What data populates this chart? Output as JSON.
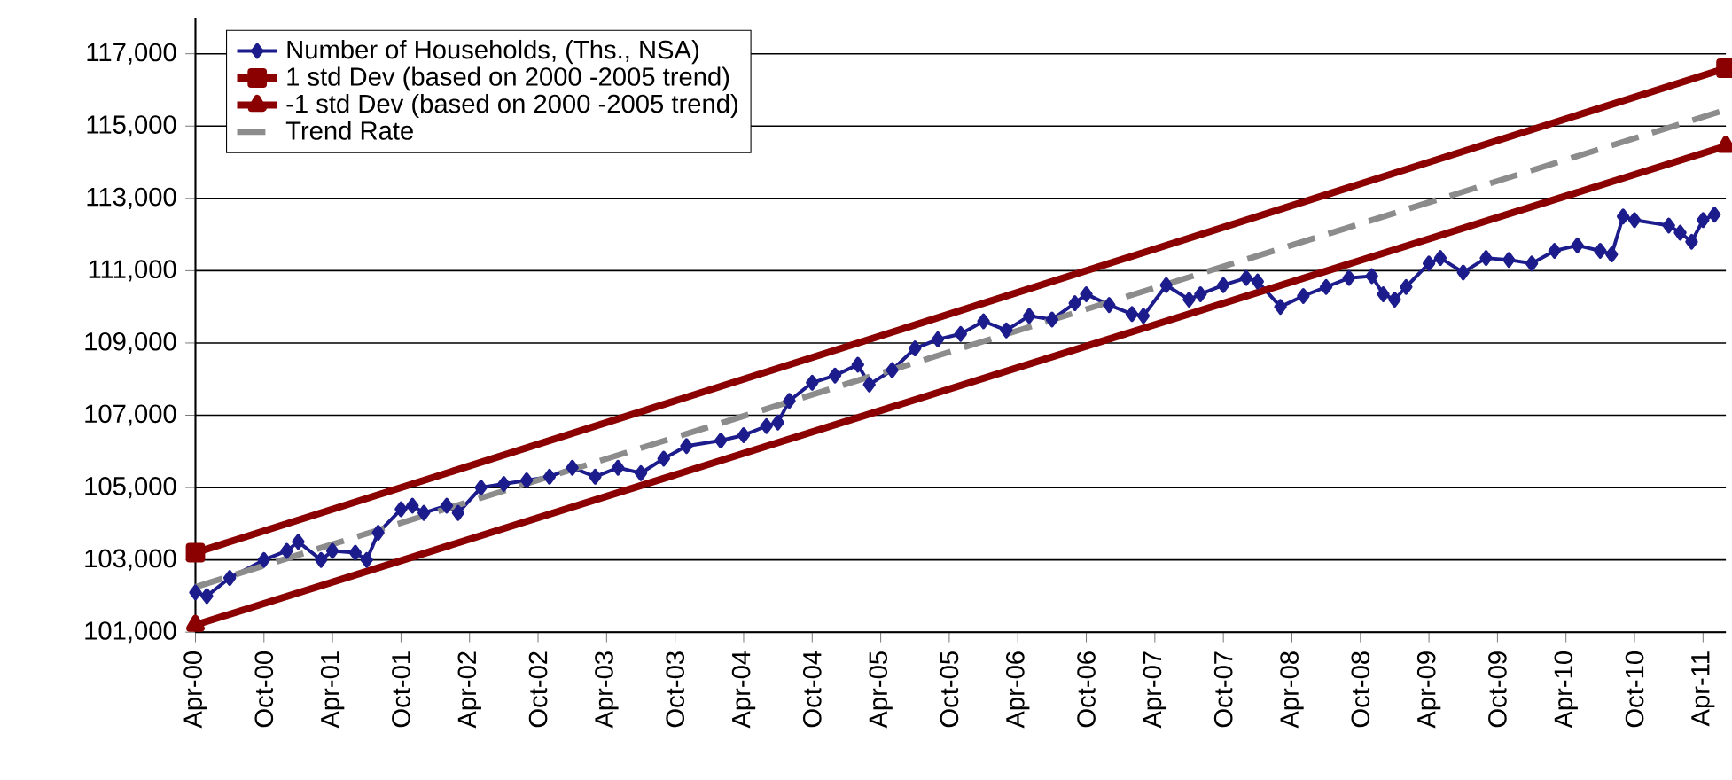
{
  "chart_data": {
    "type": "line",
    "xlim": [
      "2000-04",
      "2011-06"
    ],
    "ylim": [
      101000,
      118000
    ],
    "xticks": [
      {
        "value": "2000-04",
        "label": "Apr-00"
      },
      {
        "value": "2000-10",
        "label": "Oct-00"
      },
      {
        "value": "2001-04",
        "label": "Apr-01"
      },
      {
        "value": "2001-10",
        "label": "Oct-01"
      },
      {
        "value": "2002-04",
        "label": "Apr-02"
      },
      {
        "value": "2002-10",
        "label": "Oct-02"
      },
      {
        "value": "2003-04",
        "label": "Apr-03"
      },
      {
        "value": "2003-10",
        "label": "Oct-03"
      },
      {
        "value": "2004-04",
        "label": "Apr-04"
      },
      {
        "value": "2004-10",
        "label": "Oct-04"
      },
      {
        "value": "2005-04",
        "label": "Apr-05"
      },
      {
        "value": "2005-10",
        "label": "Oct-05"
      },
      {
        "value": "2006-04",
        "label": "Apr-06"
      },
      {
        "value": "2006-10",
        "label": "Oct-06"
      },
      {
        "value": "2007-04",
        "label": "Apr-07"
      },
      {
        "value": "2007-10",
        "label": "Oct-07"
      },
      {
        "value": "2008-04",
        "label": "Apr-08"
      },
      {
        "value": "2008-10",
        "label": "Oct-08"
      },
      {
        "value": "2009-04",
        "label": "Apr-09"
      },
      {
        "value": "2009-10",
        "label": "Oct-09"
      },
      {
        "value": "2010-04",
        "label": "Apr-10"
      },
      {
        "value": "2010-10",
        "label": "Oct-10"
      },
      {
        "value": "2011-04",
        "label": "Apr-11"
      }
    ],
    "yticks": [
      {
        "value": 101000,
        "label": "101,000"
      },
      {
        "value": 103000,
        "label": "103,000"
      },
      {
        "value": 105000,
        "label": "105,000"
      },
      {
        "value": 107000,
        "label": "107,000"
      },
      {
        "value": 109000,
        "label": "109,000"
      },
      {
        "value": 111000,
        "label": "111,000"
      },
      {
        "value": 113000,
        "label": "113,000"
      },
      {
        "value": 115000,
        "label": "115,000"
      },
      {
        "value": 117000,
        "label": "117,000"
      }
    ],
    "grid": "y",
    "legend": "top left",
    "series": [
      {
        "name": "Number of Households, (Ths., NSA)",
        "color": "#1c1c8c",
        "marker": "diamond",
        "line_style": "solid",
        "x": [
          "2000-04",
          "2000-05",
          "2000-07",
          "2000-10",
          "2000-12",
          "2001-01",
          "2001-03",
          "2001-04",
          "2001-06",
          "2001-07",
          "2001-08",
          "2001-10",
          "2001-11",
          "2001-12",
          "2002-02",
          "2002-03",
          "2002-05",
          "2002-07",
          "2002-09",
          "2002-11",
          "2003-01",
          "2003-03",
          "2003-05",
          "2003-07",
          "2003-09",
          "2003-11",
          "2004-02",
          "2004-04",
          "2004-06",
          "2004-07",
          "2004-08",
          "2004-10",
          "2004-12",
          "2005-02",
          "2005-03",
          "2005-05",
          "2005-07",
          "2005-09",
          "2005-11",
          "2006-01",
          "2006-03",
          "2006-05",
          "2006-07",
          "2006-09",
          "2006-10",
          "2006-12",
          "2007-02",
          "2007-03",
          "2007-05",
          "2007-07",
          "2007-08",
          "2007-10",
          "2007-12",
          "2008-01",
          "2008-03",
          "2008-05",
          "2008-07",
          "2008-09",
          "2008-11",
          "2008-12",
          "2009-01",
          "2009-02",
          "2009-04",
          "2009-05",
          "2009-07",
          "2009-09",
          "2009-11",
          "2010-01",
          "2010-03",
          "2010-05",
          "2010-07",
          "2010-08",
          "2010-09",
          "2010-10",
          "2011-01",
          "2011-02",
          "2011-03",
          "2011-04",
          "2011-05"
        ],
        "values": [
          102100,
          102000,
          102500,
          103000,
          103250,
          103500,
          103000,
          103250,
          103200,
          103000,
          103750,
          104400,
          104500,
          104300,
          104500,
          104300,
          105000,
          105100,
          105200,
          105300,
          105550,
          105300,
          105550,
          105400,
          105800,
          106150,
          106300,
          106450,
          106700,
          106800,
          107400,
          107900,
          108100,
          108400,
          107850,
          108250,
          108850,
          109100,
          109250,
          109600,
          109350,
          109750,
          109650,
          110100,
          110350,
          110050,
          109800,
          109750,
          110600,
          110200,
          110350,
          110600,
          110800,
          110700,
          110000,
          110300,
          110550,
          110800,
          110850,
          110350,
          110200,
          110550,
          111200,
          111350,
          110950,
          111350,
          111300,
          111200,
          111550,
          111700,
          111550,
          111450,
          112500,
          112400,
          112250,
          112050,
          111800,
          112400,
          112550
        ]
      },
      {
        "name": "1 std Dev (based on 2000 -2005 trend)",
        "color": "#8b0000",
        "marker": "square",
        "line_style": "solid",
        "x": [
          "2000-04",
          "2011-06"
        ],
        "values": [
          103200,
          116600
        ]
      },
      {
        "name": "-1 std Dev (based on 2000 -2005 trend)",
        "color": "#8b0000",
        "marker": "triangle",
        "line_style": "solid",
        "x": [
          "2000-04",
          "2011-06"
        ],
        "values": [
          101200,
          114450
        ]
      },
      {
        "name": "Trend Rate",
        "color": "#8c8c8c",
        "marker": "none",
        "line_style": "dashed",
        "x": [
          "2000-04",
          "2011-06"
        ],
        "values": [
          102250,
          115450
        ]
      }
    ]
  }
}
